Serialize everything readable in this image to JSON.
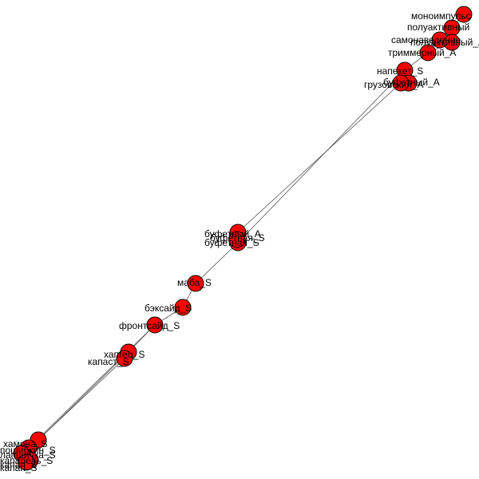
{
  "colors": {
    "node_fill": "#ff0000",
    "node_stroke": "#000000",
    "edge": "#555555",
    "background": "#ffffff"
  },
  "nodes": [
    {
      "id": "n1",
      "label": "моноимпульс"
    },
    {
      "id": "n2",
      "label": "полуактивный"
    },
    {
      "id": "n3",
      "label": "самонаведение"
    },
    {
      "id": "n4",
      "label": "полуактивный_A"
    },
    {
      "id": "n5",
      "label": "триммерный_A"
    },
    {
      "id": "n6",
      "label": "напекет_S"
    },
    {
      "id": "n7",
      "label": "буфетный_A"
    },
    {
      "id": "n8",
      "label": "грузовский_A"
    },
    {
      "id": "n9",
      "label": "буфетный_A"
    },
    {
      "id": "n10",
      "label": "буфетная_S"
    },
    {
      "id": "n11",
      "label": "буфетная_S"
    },
    {
      "id": "n12",
      "label": "маба_S"
    },
    {
      "id": "n13",
      "label": "бэксайд_S"
    },
    {
      "id": "n14",
      "label": "фронтсайд_S"
    },
    {
      "id": "n15",
      "label": "хапгец_S"
    },
    {
      "id": "n16",
      "label": "капаст_S"
    },
    {
      "id": "n17",
      "label": "хамона_S"
    },
    {
      "id": "n18",
      "label": "пошибкин_S"
    },
    {
      "id": "n19",
      "label": "лапшичка_S"
    },
    {
      "id": "n20",
      "label": "капарель_S"
    },
    {
      "id": "n21",
      "label": "капап_S"
    },
    {
      "id": "n22",
      "label": "капап_S"
    }
  ],
  "edges": [
    [
      "n1",
      "n2"
    ],
    [
      "n2",
      "n3"
    ],
    [
      "n2",
      "n4"
    ],
    [
      "n3",
      "n5"
    ],
    [
      "n4",
      "n5"
    ],
    [
      "n5",
      "n6"
    ],
    [
      "n6",
      "n7"
    ],
    [
      "n6",
      "n8"
    ],
    [
      "n7",
      "n8"
    ],
    [
      "n8",
      "n9"
    ],
    [
      "n6",
      "n10"
    ],
    [
      "n9",
      "n10"
    ],
    [
      "n10",
      "n11"
    ],
    [
      "n9",
      "n11"
    ],
    [
      "n10",
      "n12"
    ],
    [
      "n12",
      "n13"
    ],
    [
      "n13",
      "n14"
    ],
    [
      "n14",
      "n15"
    ],
    [
      "n15",
      "n16"
    ],
    [
      "n16",
      "n17"
    ],
    [
      "n15",
      "n17"
    ],
    [
      "n14",
      "n18"
    ],
    [
      "n17",
      "n18"
    ],
    [
      "n17",
      "n19"
    ],
    [
      "n18",
      "n20"
    ],
    [
      "n19",
      "n21"
    ],
    [
      "n20",
      "n22"
    ],
    [
      "n21",
      "n22"
    ]
  ]
}
